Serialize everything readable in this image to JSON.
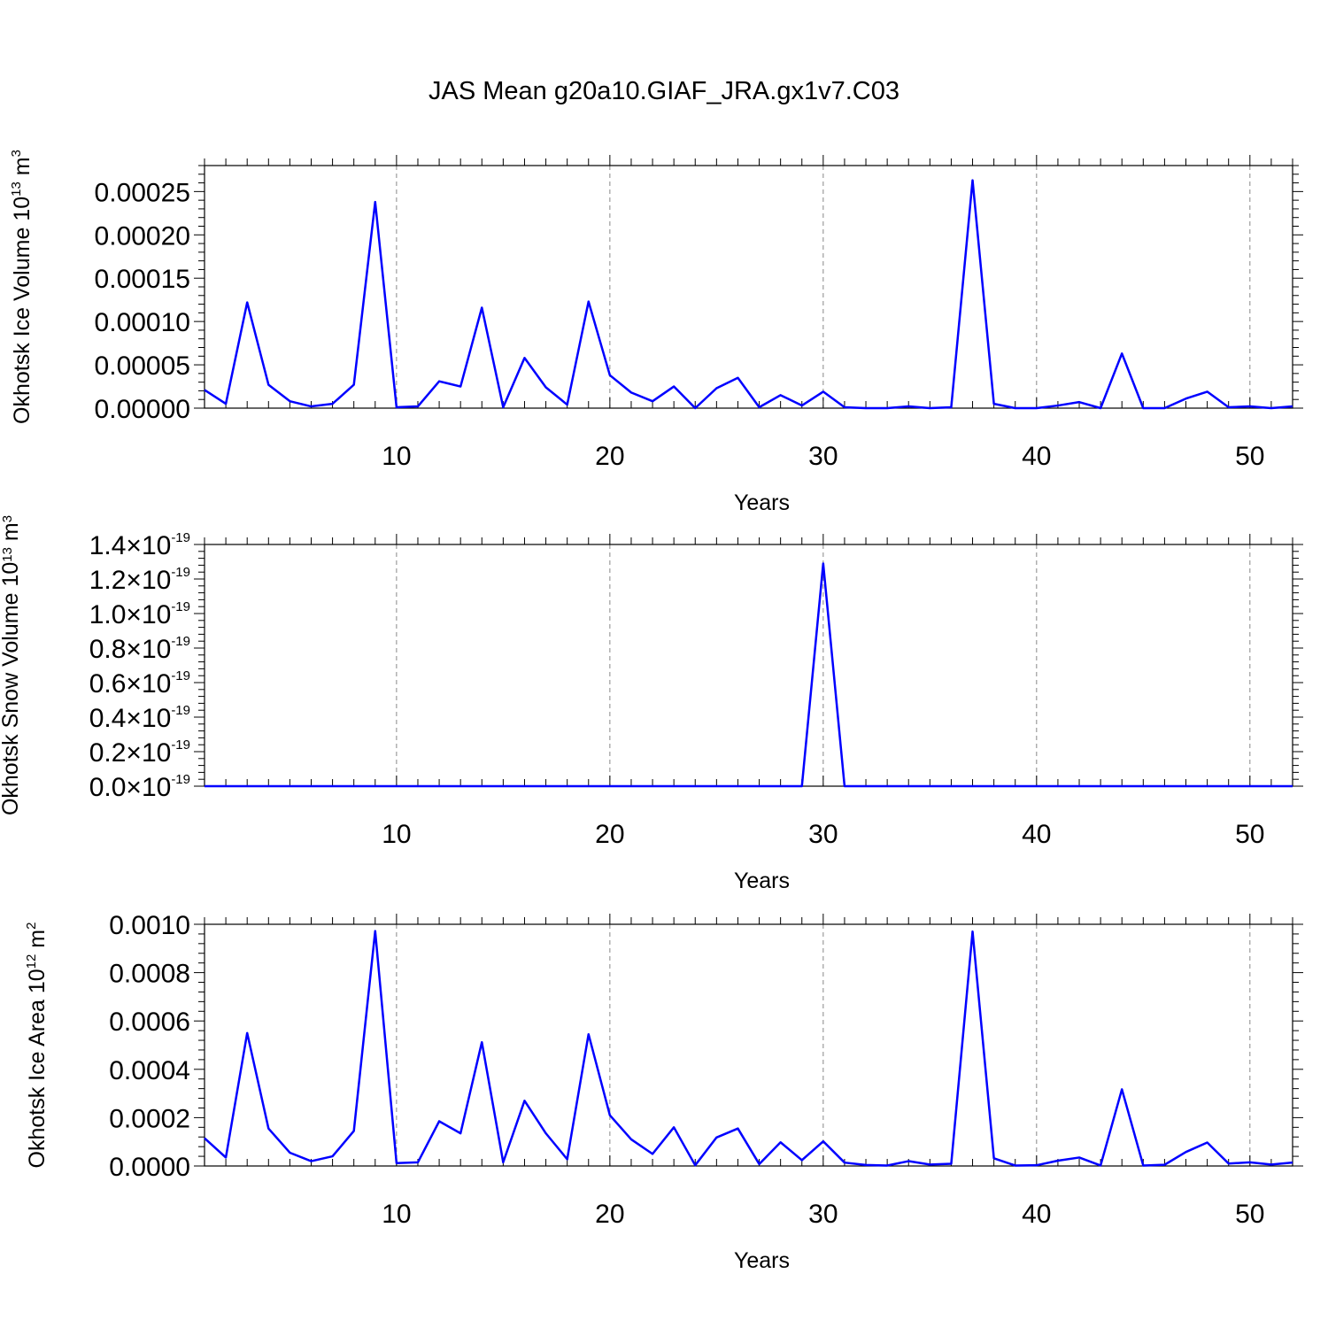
{
  "title": "JAS Mean g20a10.GIAF_JRA.gx1v7.C03",
  "colors": {
    "series": "#0000ff",
    "grid": "#888888",
    "axis": "#000000"
  },
  "chart_data": [
    {
      "type": "line",
      "xlabel": "Years",
      "ylabel": {
        "base": "Okhotsk Ice Volume 10",
        "exp": "13",
        "unit": " m",
        "unit_exp": "3"
      },
      "xlim": [
        1,
        52
      ],
      "ylim": [
        0,
        0.00028
      ],
      "x_ticks": [
        "10",
        "20",
        "30",
        "40",
        "50"
      ],
      "y_ticks": [
        {
          "value": 0.0,
          "label": "0.00000"
        },
        {
          "value": 5e-05,
          "label": "0.00005"
        },
        {
          "value": 0.0001,
          "label": "0.00010"
        },
        {
          "value": 0.00015,
          "label": "0.00015"
        },
        {
          "value": 0.0002,
          "label": "0.00020"
        },
        {
          "value": 0.00025,
          "label": "0.00025"
        }
      ],
      "grid_x": true,
      "series": [
        {
          "x": [
            1,
            2,
            3,
            4,
            5,
            6,
            7,
            8,
            9,
            10,
            11,
            12,
            13,
            14,
            15,
            16,
            17,
            18,
            19,
            20,
            21,
            22,
            23,
            24,
            25,
            26,
            27,
            28,
            29,
            30,
            31,
            32,
            33,
            34,
            35,
            36,
            37,
            38,
            39,
            40,
            41,
            42,
            43,
            44,
            45,
            46,
            47,
            48,
            49,
            50,
            51,
            52
          ],
          "values": [
            2.1e-05,
            5e-06,
            0.000122,
            2.7e-05,
            8e-06,
            2e-06,
            5e-06,
            2.7e-05,
            0.000238,
            1e-06,
            2e-06,
            3.1e-05,
            2.5e-05,
            0.000116,
            1e-06,
            5.8e-05,
            2.4e-05,
            4e-06,
            0.000123,
            3.8e-05,
            1.8e-05,
            8e-06,
            2.5e-05,
            0.0,
            2.3e-05,
            3.5e-05,
            1e-06,
            1.5e-05,
            3e-06,
            1.9e-05,
            1e-06,
            0.0,
            0.0,
            2e-06,
            0.0,
            1e-06,
            0.000263,
            5e-06,
            0.0,
            0.0,
            3e-06,
            7e-06,
            0.0,
            6.3e-05,
            0.0,
            0.0,
            1.1e-05,
            1.9e-05,
            1e-06,
            2e-06,
            0.0,
            2e-06
          ]
        }
      ]
    },
    {
      "type": "line",
      "xlabel": "Years",
      "ylabel": {
        "base": "Okhotsk Snow Volume 10",
        "exp": "13",
        "unit": " m",
        "unit_exp": "3"
      },
      "xlim": [
        1,
        52
      ],
      "ylim": [
        0,
        1.4e-19
      ],
      "x_ticks": [
        "10",
        "20",
        "30",
        "40",
        "50"
      ],
      "y_ticks": [
        {
          "value": 0.0,
          "label": "0.0×10",
          "exp": "-19"
        },
        {
          "value": 2e-20,
          "label": "0.2×10",
          "exp": "-19"
        },
        {
          "value": 4e-20,
          "label": "0.4×10",
          "exp": "-19"
        },
        {
          "value": 6e-20,
          "label": "0.6×10",
          "exp": "-19"
        },
        {
          "value": 8e-20,
          "label": "0.8×10",
          "exp": "-19"
        },
        {
          "value": 1e-19,
          "label": "1.0×10",
          "exp": "-19"
        },
        {
          "value": 1.2e-19,
          "label": "1.2×10",
          "exp": "-19"
        },
        {
          "value": 1.4e-19,
          "label": "1.4×10",
          "exp": "-19"
        }
      ],
      "grid_x": true,
      "series": [
        {
          "x": [
            1,
            2,
            3,
            4,
            5,
            6,
            7,
            8,
            9,
            10,
            11,
            12,
            13,
            14,
            15,
            16,
            17,
            18,
            19,
            20,
            21,
            22,
            23,
            24,
            25,
            26,
            27,
            28,
            29,
            30,
            31,
            32,
            33,
            34,
            35,
            36,
            37,
            38,
            39,
            40,
            41,
            42,
            43,
            44,
            45,
            46,
            47,
            48,
            49,
            50,
            51,
            52
          ],
          "values": [
            0,
            0,
            0,
            0,
            0,
            0,
            0,
            0,
            0,
            0,
            0,
            0,
            0,
            0,
            0,
            0,
            0,
            0,
            0,
            0,
            0,
            0,
            0,
            0,
            0,
            0,
            0,
            0,
            0,
            1.29e-19,
            0,
            0,
            0,
            0,
            0,
            0,
            0,
            0,
            0,
            0,
            0,
            0,
            0,
            0,
            0,
            0,
            0,
            0,
            0,
            0,
            0,
            0
          ]
        }
      ]
    },
    {
      "type": "line",
      "xlabel": "Years",
      "ylabel": {
        "base": "Okhotsk Ice Area 10",
        "exp": "12",
        "unit": " m",
        "unit_exp": "2"
      },
      "xlim": [
        1,
        52
      ],
      "ylim": [
        0,
        0.001
      ],
      "x_ticks": [
        "10",
        "20",
        "30",
        "40",
        "50"
      ],
      "y_ticks": [
        {
          "value": 0.0,
          "label": "0.0000"
        },
        {
          "value": 0.0002,
          "label": "0.0002"
        },
        {
          "value": 0.0004,
          "label": "0.0004"
        },
        {
          "value": 0.0006,
          "label": "0.0006"
        },
        {
          "value": 0.0008,
          "label": "0.0008"
        },
        {
          "value": 0.001,
          "label": "0.0010"
        }
      ],
      "grid_x": true,
      "series": [
        {
          "x": [
            1,
            2,
            3,
            4,
            5,
            6,
            7,
            8,
            9,
            10,
            11,
            12,
            13,
            14,
            15,
            16,
            17,
            18,
            19,
            20,
            21,
            22,
            23,
            24,
            25,
            26,
            27,
            28,
            29,
            30,
            31,
            32,
            33,
            34,
            35,
            36,
            37,
            38,
            39,
            40,
            41,
            42,
            43,
            44,
            45,
            46,
            47,
            48,
            49,
            50,
            51,
            52
          ],
          "values": [
            0.000115,
            3.5e-05,
            0.00055,
            0.000155,
            5.5e-05,
            2e-05,
            4e-05,
            0.000145,
            0.000972,
            1.2e-05,
            1.5e-05,
            0.000185,
            0.000135,
            0.000512,
            1.5e-05,
            0.00027,
            0.000135,
            2.8e-05,
            0.000545,
            0.00021,
            0.00011,
            5e-05,
            0.00016,
            3e-06,
            0.000118,
            0.000155,
            8e-06,
            9.8e-05,
            2.4e-05,
            0.000102,
            1.4e-05,
            4e-06,
            2e-06,
            2e-05,
            6e-06,
            9e-06,
            0.00097,
            3.2e-05,
            2e-06,
            3e-06,
            2.2e-05,
            3.5e-05,
            2e-06,
            0.000317,
            2e-06,
            5e-06,
            5.8e-05,
            9.7e-05,
            1e-05,
            1.5e-05,
            6e-06,
            1.4e-05
          ]
        }
      ]
    }
  ]
}
